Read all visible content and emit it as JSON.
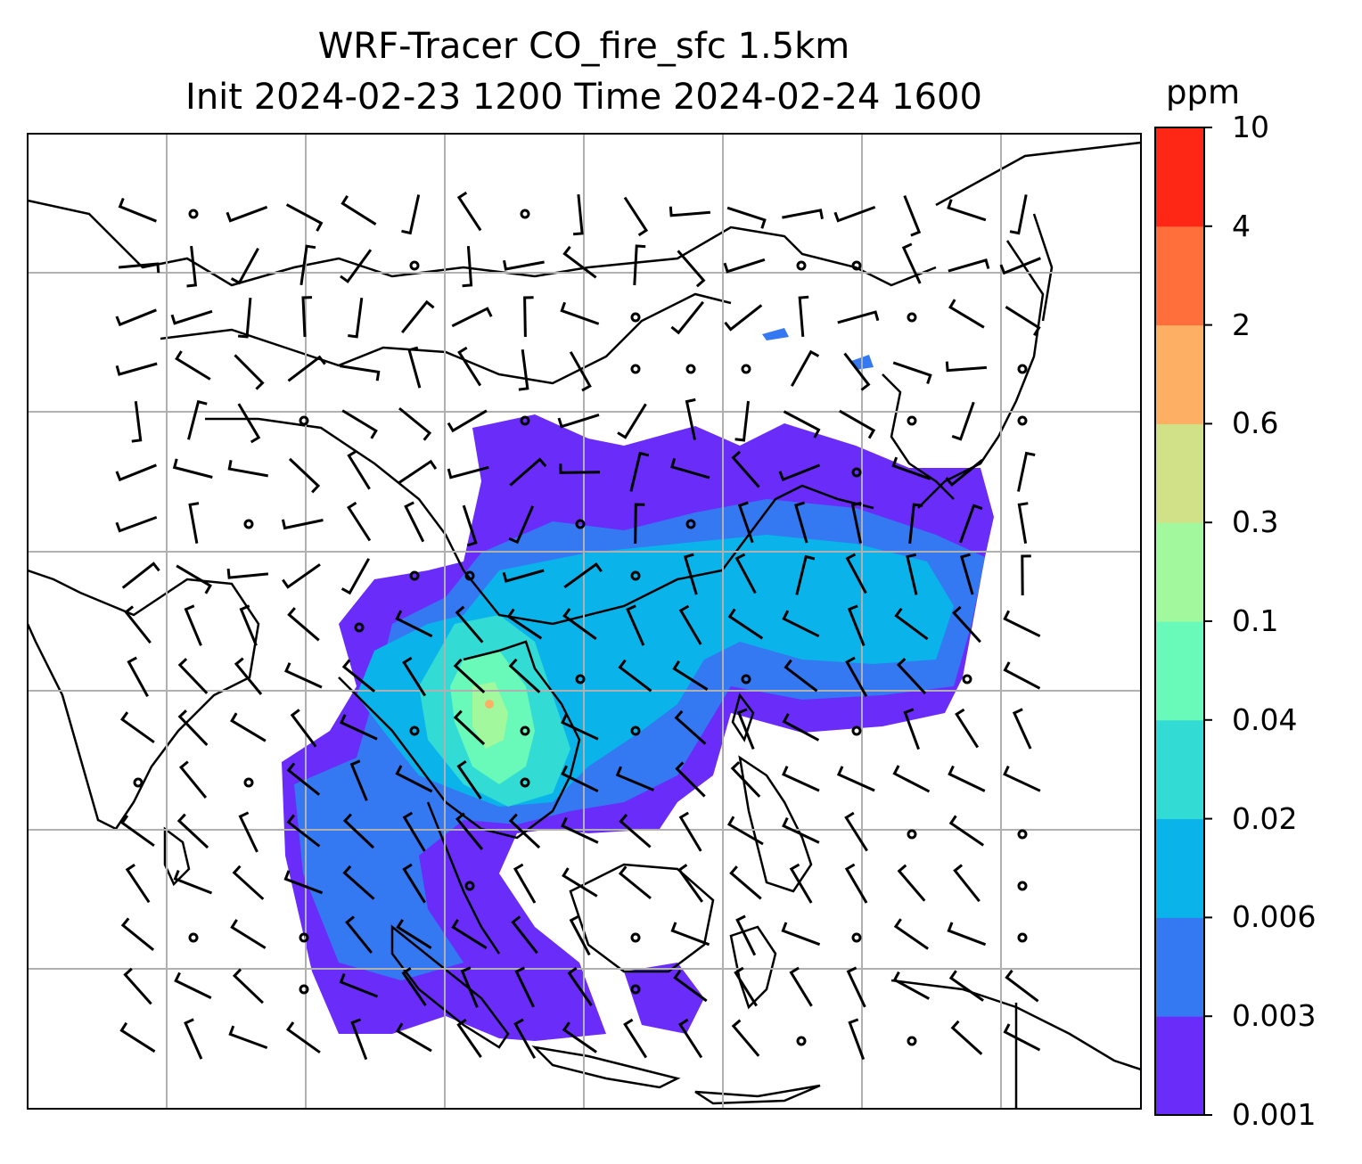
{
  "title": {
    "line1": "WRF-Tracer CO_fire_sfc 1.5km",
    "line2": "Init 2024-02-23 1200 Time 2024-02-24 1600"
  },
  "colorbar": {
    "unit": "ppm",
    "levels": [
      "0.001",
      "0.003",
      "0.006",
      "0.02",
      "0.04",
      "0.1",
      "0.3",
      "0.6",
      "2",
      "4",
      "10"
    ],
    "colors": [
      "#6a2cf9",
      "#3478f2",
      "#0ab4ea",
      "#32dcd4",
      "#69faba",
      "#a2f89c",
      "#d0e188",
      "#fdaf63",
      "#fe6f3b",
      "#fe2716"
    ]
  },
  "map": {
    "gridlines": true,
    "colors": {
      "coastline": "#000000",
      "grid": "#b0b0b0",
      "barb": "#000000",
      "plume_low": "#6a2cf9",
      "plume_mid": "#3478f2",
      "plume_high": "#0ab4ea",
      "hotspot_green": "#69faba",
      "hotspot_orange": "#fdaf63"
    }
  }
}
